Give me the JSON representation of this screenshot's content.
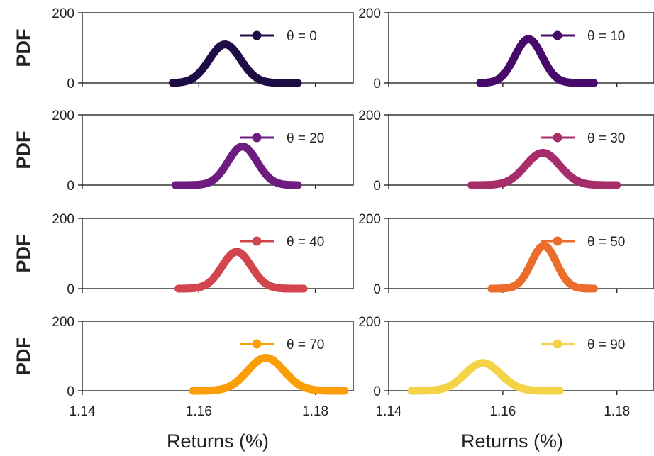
{
  "chart_data": {
    "type": "scatter",
    "layout": "4x2 grid of panels",
    "ylabel": "PDF",
    "xlabel": "Returns (%)",
    "ylim": [
      0,
      200
    ],
    "yticks": [
      "0",
      "200"
    ],
    "columns": [
      {
        "xlim": [
          1.14,
          1.1865
        ],
        "xticks": [
          "1.14",
          "1.16",
          "1.18"
        ]
      },
      {
        "xlim": [
          1.14,
          1.1865
        ],
        "xticks": [
          "1.14",
          "1.16",
          "1.18"
        ]
      }
    ],
    "legend_placement": "upper-right",
    "grid": false,
    "panels": [
      {
        "legend": "θ = 0",
        "color": "#1e0c45",
        "mean": 1.1645,
        "sd": 0.0027,
        "peak": 110,
        "xmin": 1.1555,
        "xmax": 1.177
      },
      {
        "legend": "θ = 10",
        "color": "#480b6a",
        "mean": 1.1645,
        "sd": 0.0024,
        "peak": 125,
        "xmin": 1.156,
        "xmax": 1.176
      },
      {
        "legend": "θ = 20",
        "color": "#6f1c81",
        "mean": 1.1675,
        "sd": 0.0025,
        "peak": 110,
        "xmin": 1.156,
        "xmax": 1.177
      },
      {
        "legend": "θ = 30",
        "color": "#a72d6b",
        "mean": 1.167,
        "sd": 0.003,
        "peak": 92,
        "xmin": 1.1545,
        "xmax": 1.18
      },
      {
        "legend": "θ = 40",
        "color": "#d2454e",
        "mean": 1.1665,
        "sd": 0.0025,
        "peak": 105,
        "xmin": 1.1565,
        "xmax": 1.178
      },
      {
        "legend": "θ = 50",
        "color": "#ec6d2b",
        "mean": 1.1672,
        "sd": 0.0022,
        "peak": 122,
        "xmin": 1.158,
        "xmax": 1.176
      },
      {
        "legend": "θ = 70",
        "color": "#fb9e07",
        "mean": 1.1715,
        "sd": 0.0031,
        "peak": 95,
        "xmin": 1.159,
        "xmax": 1.185
      },
      {
        "legend": "θ = 90",
        "color": "#f4d447",
        "mean": 1.1565,
        "sd": 0.0031,
        "peak": 80,
        "xmin": 1.144,
        "xmax": 1.17
      }
    ]
  }
}
